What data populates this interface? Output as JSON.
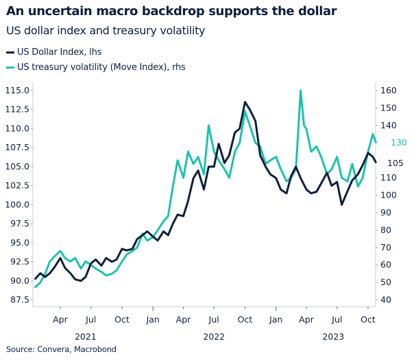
{
  "chart_data": {
    "type": "line",
    "title": "An uncertain macro backdrop supports the dollar",
    "subtitle": "US dollar index and treasury volatility",
    "source": "Source: Convera, Macrobond",
    "colors": {
      "dxy": "#0c1f3a",
      "move": "#1cc2ad"
    },
    "left_axis": {
      "ylim": [
        87.5,
        115.0
      ],
      "ticks": [
        "87.5",
        "90.0",
        "92.5",
        "95.0",
        "97.5",
        "100.0",
        "102.5",
        "105.0",
        "107.5",
        "110.0",
        "112.5",
        "115.0"
      ]
    },
    "right_axis": {
      "ylim": [
        40,
        160
      ],
      "ticks": [
        "40",
        "50",
        "60",
        "70",
        "80",
        "90",
        "100",
        "110",
        "140",
        "150",
        "160"
      ]
    },
    "x_axis": {
      "month_ticks": [
        {
          "date": "2021-04-01",
          "label": "Apr"
        },
        {
          "date": "2021-07-01",
          "label": "Jul"
        },
        {
          "date": "2021-10-01",
          "label": "Oct"
        },
        {
          "date": "2022-01-01",
          "label": "Jan"
        },
        {
          "date": "2022-04-01",
          "label": "Apr"
        },
        {
          "date": "2022-07-01",
          "label": "Jul"
        },
        {
          "date": "2022-10-01",
          "label": "Oct"
        },
        {
          "date": "2023-01-01",
          "label": "Jan"
        },
        {
          "date": "2023-04-01",
          "label": "Apr"
        },
        {
          "date": "2023-07-01",
          "label": "Jul"
        },
        {
          "date": "2023-10-01",
          "label": "Oct"
        }
      ],
      "years": [
        {
          "date": "2021-06-15",
          "label": "2021"
        },
        {
          "date": "2022-07-01",
          "label": "2022"
        },
        {
          "date": "2023-06-20",
          "label": "2023"
        }
      ]
    },
    "grid": false,
    "legend_placement": "top-left",
    "series": [
      {
        "name": "US Dollar Index, lhs",
        "axis": "left",
        "end_label": "105",
        "points": [
          [
            "2021-01-15",
            90.2
          ],
          [
            "2021-02-01",
            91.0
          ],
          [
            "2021-02-15",
            90.5
          ],
          [
            "2021-03-01",
            91.0
          ],
          [
            "2021-03-15",
            91.8
          ],
          [
            "2021-04-01",
            93.0
          ],
          [
            "2021-04-15",
            91.7
          ],
          [
            "2021-05-01",
            91.0
          ],
          [
            "2021-05-15",
            90.2
          ],
          [
            "2021-06-01",
            90.0
          ],
          [
            "2021-06-15",
            90.5
          ],
          [
            "2021-07-01",
            92.3
          ],
          [
            "2021-07-15",
            92.8
          ],
          [
            "2021-08-01",
            92.0
          ],
          [
            "2021-08-15",
            93.0
          ],
          [
            "2021-09-01",
            92.5
          ],
          [
            "2021-09-15",
            92.8
          ],
          [
            "2021-10-01",
            94.2
          ],
          [
            "2021-10-15",
            94.0
          ],
          [
            "2021-11-01",
            94.2
          ],
          [
            "2021-11-15",
            95.5
          ],
          [
            "2021-12-01",
            96.0
          ],
          [
            "2021-12-15",
            96.5
          ],
          [
            "2022-01-01",
            95.8
          ],
          [
            "2022-01-15",
            95.3
          ],
          [
            "2022-02-01",
            96.5
          ],
          [
            "2022-02-15",
            96.0
          ],
          [
            "2022-03-01",
            97.5
          ],
          [
            "2022-03-15",
            98.7
          ],
          [
            "2022-04-01",
            98.5
          ],
          [
            "2022-04-15",
            100.5
          ],
          [
            "2022-05-01",
            103.5
          ],
          [
            "2022-05-15",
            104.5
          ],
          [
            "2022-06-01",
            102.0
          ],
          [
            "2022-06-15",
            105.0
          ],
          [
            "2022-07-01",
            105.0
          ],
          [
            "2022-07-15",
            108.0
          ],
          [
            "2022-08-01",
            105.5
          ],
          [
            "2022-08-15",
            106.5
          ],
          [
            "2022-09-01",
            109.5
          ],
          [
            "2022-09-15",
            110.0
          ],
          [
            "2022-10-01",
            113.5
          ],
          [
            "2022-10-15",
            112.5
          ],
          [
            "2022-11-01",
            111.0
          ],
          [
            "2022-11-15",
            106.5
          ],
          [
            "2022-12-01",
            105.0
          ],
          [
            "2022-12-15",
            104.0
          ],
          [
            "2023-01-01",
            103.5
          ],
          [
            "2023-01-15",
            102.0
          ],
          [
            "2023-02-01",
            101.5
          ],
          [
            "2023-02-15",
            103.8
          ],
          [
            "2023-03-01",
            105.0
          ],
          [
            "2023-03-15",
            103.5
          ],
          [
            "2023-04-01",
            102.0
          ],
          [
            "2023-04-15",
            101.5
          ],
          [
            "2023-05-01",
            101.7
          ],
          [
            "2023-05-15",
            102.8
          ],
          [
            "2023-06-01",
            104.2
          ],
          [
            "2023-06-15",
            102.5
          ],
          [
            "2023-07-01",
            103.0
          ],
          [
            "2023-07-15",
            100.0
          ],
          [
            "2023-08-01",
            101.8
          ],
          [
            "2023-08-15",
            103.2
          ],
          [
            "2023-09-01",
            104.0
          ],
          [
            "2023-09-15",
            105.2
          ],
          [
            "2023-10-01",
            106.8
          ],
          [
            "2023-10-15",
            106.3
          ],
          [
            "2023-10-25",
            105.5
          ]
        ]
      },
      {
        "name": "US treasury volatility (Move Index), rhs",
        "axis": "right",
        "end_label": "130",
        "points": [
          [
            "2021-01-15",
            47
          ],
          [
            "2021-02-01",
            50
          ],
          [
            "2021-02-15",
            55
          ],
          [
            "2021-03-01",
            62
          ],
          [
            "2021-03-15",
            65
          ],
          [
            "2021-04-01",
            68
          ],
          [
            "2021-04-15",
            64
          ],
          [
            "2021-05-01",
            62
          ],
          [
            "2021-05-15",
            64
          ],
          [
            "2021-06-01",
            58
          ],
          [
            "2021-06-15",
            62
          ],
          [
            "2021-07-01",
            60
          ],
          [
            "2021-07-15",
            58
          ],
          [
            "2021-08-01",
            56
          ],
          [
            "2021-08-15",
            54
          ],
          [
            "2021-09-01",
            55
          ],
          [
            "2021-09-15",
            57
          ],
          [
            "2021-10-01",
            62
          ],
          [
            "2021-10-15",
            66
          ],
          [
            "2021-11-01",
            68
          ],
          [
            "2021-11-15",
            70
          ],
          [
            "2021-12-01",
            78
          ],
          [
            "2021-12-15",
            74
          ],
          [
            "2022-01-01",
            76
          ],
          [
            "2022-01-15",
            80
          ],
          [
            "2022-02-01",
            85
          ],
          [
            "2022-02-15",
            88
          ],
          [
            "2022-03-01",
            105
          ],
          [
            "2022-03-15",
            120
          ],
          [
            "2022-04-01",
            110
          ],
          [
            "2022-04-15",
            125
          ],
          [
            "2022-05-01",
            118
          ],
          [
            "2022-05-15",
            122
          ],
          [
            "2022-06-01",
            112
          ],
          [
            "2022-06-15",
            140
          ],
          [
            "2022-07-01",
            125
          ],
          [
            "2022-07-15",
            120
          ],
          [
            "2022-08-01",
            115
          ],
          [
            "2022-08-15",
            110
          ],
          [
            "2022-09-01",
            125
          ],
          [
            "2022-09-15",
            130
          ],
          [
            "2022-10-01",
            148
          ],
          [
            "2022-10-15",
            140
          ],
          [
            "2022-11-01",
            130
          ],
          [
            "2022-11-15",
            128
          ],
          [
            "2022-12-01",
            118
          ],
          [
            "2022-12-15",
            120
          ],
          [
            "2023-01-01",
            122
          ],
          [
            "2023-01-15",
            115
          ],
          [
            "2023-02-01",
            108
          ],
          [
            "2023-02-15",
            110
          ],
          [
            "2023-03-01",
            115
          ],
          [
            "2023-03-15",
            160
          ],
          [
            "2023-03-25",
            140
          ],
          [
            "2023-04-01",
            138
          ],
          [
            "2023-04-15",
            125
          ],
          [
            "2023-05-01",
            128
          ],
          [
            "2023-05-15",
            122
          ],
          [
            "2023-06-01",
            112
          ],
          [
            "2023-06-15",
            115
          ],
          [
            "2023-07-01",
            122
          ],
          [
            "2023-07-15",
            110
          ],
          [
            "2023-08-01",
            108
          ],
          [
            "2023-08-15",
            118
          ],
          [
            "2023-09-01",
            105
          ],
          [
            "2023-09-15",
            110
          ],
          [
            "2023-10-01",
            125
          ],
          [
            "2023-10-15",
            135
          ],
          [
            "2023-10-25",
            130
          ]
        ]
      }
    ]
  }
}
